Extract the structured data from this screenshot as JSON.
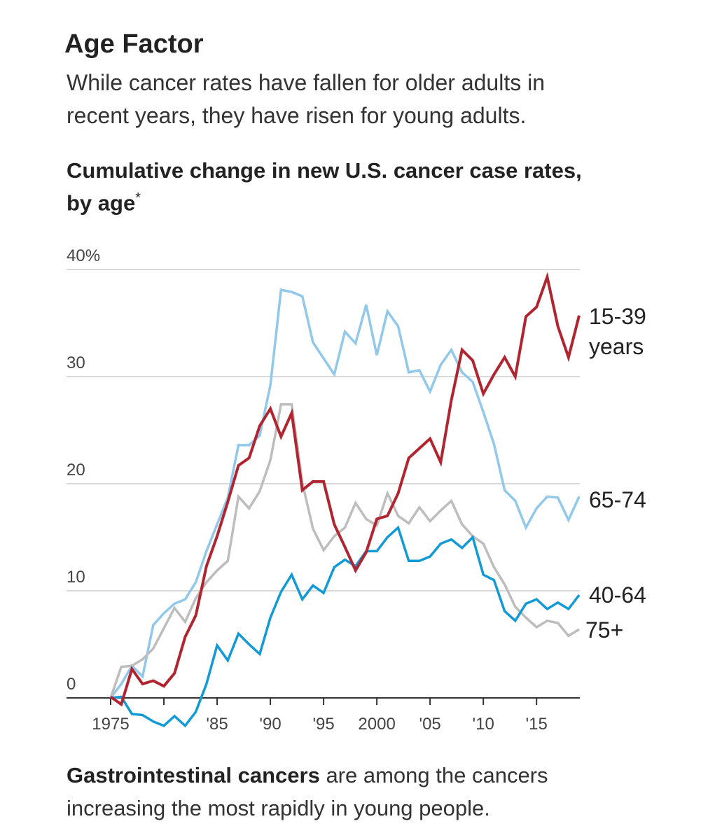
{
  "title": "Age Factor",
  "subtitle": [
    "While cancer rates have fallen for older adults in",
    "recent years, they have risen for young adults."
  ],
  "chart_heading": [
    "Cumulative change in new U.S. cancer case rates,",
    "by age"
  ],
  "chart_heading_mark": "*",
  "footer": {
    "bold": "Gastrointestinal cancers",
    "rest1": " are among the cancers",
    "line2": "increasing the most rapidly in young people."
  },
  "chart_data": {
    "type": "line",
    "x": [
      1975,
      1976,
      1977,
      1978,
      1979,
      1980,
      1981,
      1982,
      1983,
      1984,
      1985,
      1986,
      1987,
      1988,
      1989,
      1990,
      1991,
      1992,
      1993,
      1994,
      1995,
      1996,
      1997,
      1998,
      1999,
      2000,
      2001,
      2002,
      2003,
      2004,
      2005,
      2006,
      2007,
      2008,
      2009,
      2010,
      2011,
      2012,
      2013,
      2014,
      2015,
      2016,
      2017,
      2018,
      2019
    ],
    "xlim": [
      1975,
      2019
    ],
    "ylim": [
      0,
      40
    ],
    "y_ticks": [
      0,
      10,
      20,
      30,
      40
    ],
    "y_tick_labels": [
      "0",
      "10",
      "20",
      "30",
      "40%"
    ],
    "x_ticks": [
      1975,
      1980,
      1985,
      1990,
      1995,
      2000,
      2005,
      2010,
      2015
    ],
    "x_tick_labels": [
      "1975",
      "",
      "'85",
      "'90",
      "'95",
      "2000",
      "'05",
      "'10",
      "'15"
    ],
    "grid": true,
    "series": [
      {
        "name": "65-74",
        "color": "#92c9eb",
        "values": [
          0,
          1.3,
          3.0,
          2.0,
          6.8,
          7.9,
          8.8,
          9.2,
          10.8,
          13.7,
          16.2,
          18.7,
          23.6,
          23.6,
          24.5,
          29.2,
          38.1,
          37.9,
          37.5,
          33.2,
          31.7,
          30.2,
          34.2,
          33.1,
          36.7,
          32.0,
          36.1,
          34.7,
          30.4,
          30.6,
          28.6,
          31.1,
          32.5,
          30.4,
          29.5,
          26.7,
          23.7,
          19.4,
          18.4,
          15.9,
          17.7,
          18.8,
          18.7,
          16.6,
          18.8
        ]
      },
      {
        "name": "75+",
        "color": "#bdbdbd",
        "values": [
          0,
          2.9,
          3.0,
          3.6,
          4.6,
          6.5,
          8.4,
          7.1,
          9.3,
          10.8,
          11.9,
          12.8,
          18.8,
          17.7,
          19.3,
          22.2,
          27.4,
          27.4,
          20.1,
          15.8,
          13.8,
          15.1,
          15.9,
          18.2,
          16.7,
          16.1,
          19.1,
          17.0,
          16.3,
          17.8,
          16.5,
          17.5,
          18.4,
          16.2,
          15.1,
          14.4,
          12.2,
          10.6,
          8.5,
          7.5,
          6.6,
          7.2,
          7.0,
          5.8,
          6.4
        ]
      },
      {
        "name": "40-64",
        "color": "#129ad6",
        "values": [
          0,
          0.1,
          -1.5,
          -1.6,
          -2.2,
          -2.6,
          -1.7,
          -2.6,
          -1.3,
          1.3,
          4.9,
          3.5,
          6.0,
          5.0,
          4.1,
          7.5,
          9.9,
          11.5,
          9.2,
          10.5,
          9.8,
          12.2,
          12.9,
          12.3,
          13.7,
          13.7,
          15.0,
          15.9,
          12.8,
          12.8,
          13.2,
          14.4,
          14.8,
          14.0,
          15.0,
          11.5,
          11.0,
          8.1,
          7.2,
          8.8,
          9.2,
          8.3,
          8.9,
          8.3,
          9.6
        ]
      },
      {
        "name": "15-39 years",
        "color": "#b0252f",
        "values": [
          0.1,
          -0.6,
          2.7,
          1.3,
          1.6,
          1.1,
          2.3,
          5.7,
          7.7,
          12.3,
          15.1,
          18.3,
          21.7,
          22.4,
          25.4,
          27.0,
          24.4,
          26.6,
          19.4,
          20.2,
          20.2,
          16.2,
          14.1,
          11.9,
          13.6,
          16.7,
          17.0,
          19.1,
          22.4,
          23.3,
          24.2,
          22.0,
          27.8,
          32.5,
          31.5,
          28.4,
          30.2,
          31.8,
          30.0,
          35.6,
          36.5,
          39.3,
          34.7,
          31.8,
          35.7
        ]
      }
    ],
    "series_labels": {
      "s15_39_a": "15-39",
      "s15_39_b": "years",
      "s65_74": "65-74",
      "s40_64": "40-64",
      "s75": "75+"
    }
  }
}
